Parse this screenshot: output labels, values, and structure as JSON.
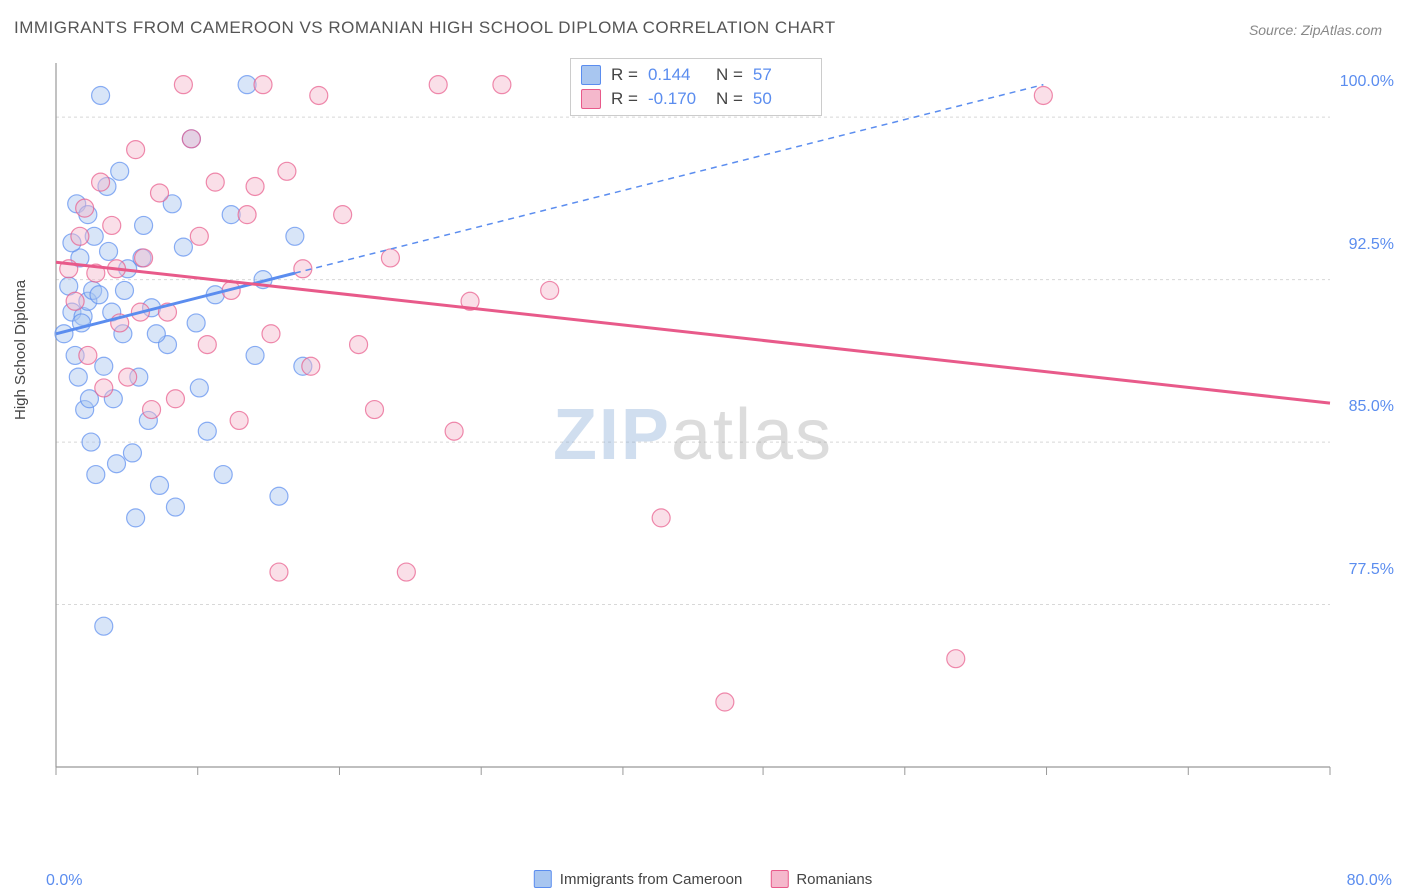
{
  "title": "IMMIGRANTS FROM CAMEROON VS ROMANIAN HIGH SCHOOL DIPLOMA CORRELATION CHART",
  "source": "Source: ZipAtlas.com",
  "y_axis_label": "High School Diploma",
  "watermark_zip": "ZIP",
  "watermark_atlas": "atlas",
  "chart": {
    "type": "scatter",
    "background_color": "#ffffff",
    "grid_color": "#d8d8d8",
    "axis_color": "#999999",
    "tick_color": "#999999",
    "label_color": "#5b8def",
    "xlim": [
      0,
      80
    ],
    "ylim": [
      70,
      102.5
    ],
    "x_ticks": [
      0,
      8.9,
      17.8,
      26.7,
      35.6,
      44.4,
      53.3,
      62.2,
      71.1,
      80
    ],
    "x_tick_labels": {
      "0": "0.0%",
      "80": "80.0%"
    },
    "y_gridlines": [
      77.5,
      85.0,
      92.5,
      100.0
    ],
    "y_tick_labels": [
      "77.5%",
      "85.0%",
      "92.5%",
      "100.0%"
    ],
    "marker_radius": 9,
    "marker_opacity": 0.45,
    "series": [
      {
        "name": "Immigrants from Cameroon",
        "color_fill": "#a8c6f0",
        "color_stroke": "#5b8def",
        "r_value": "0.144",
        "n_value": "57",
        "trend": {
          "x1": 0,
          "y1": 90.0,
          "x2": 15,
          "y2": 92.8,
          "extrap_x2": 62,
          "extrap_y2": 101.5,
          "width_solid": 3,
          "width_dash": 1.5
        },
        "points": [
          [
            0.5,
            90.0
          ],
          [
            0.8,
            92.2
          ],
          [
            1.0,
            91.0
          ],
          [
            1.2,
            89.0
          ],
          [
            1.3,
            96.0
          ],
          [
            1.5,
            93.5
          ],
          [
            1.7,
            90.8
          ],
          [
            1.8,
            86.5
          ],
          [
            2.0,
            91.5
          ],
          [
            2.0,
            95.5
          ],
          [
            2.2,
            85.0
          ],
          [
            2.3,
            92.0
          ],
          [
            2.5,
            83.5
          ],
          [
            2.8,
            101.0
          ],
          [
            3.0,
            88.5
          ],
          [
            3.0,
            76.5
          ],
          [
            3.2,
            96.8
          ],
          [
            3.5,
            91.0
          ],
          [
            3.8,
            84.0
          ],
          [
            4.0,
            97.5
          ],
          [
            4.2,
            90.0
          ],
          [
            4.5,
            93.0
          ],
          [
            5.0,
            81.5
          ],
          [
            5.2,
            88.0
          ],
          [
            5.5,
            95.0
          ],
          [
            5.8,
            86.0
          ],
          [
            6.0,
            91.2
          ],
          [
            6.5,
            83.0
          ],
          [
            7.0,
            89.5
          ],
          [
            7.5,
            82.0
          ],
          [
            8.0,
            94.0
          ],
          [
            8.5,
            99.0
          ],
          [
            9.0,
            87.5
          ],
          [
            9.5,
            85.5
          ],
          [
            10.0,
            91.8
          ],
          [
            10.5,
            83.5
          ],
          [
            11.0,
            95.5
          ],
          [
            12.0,
            101.5
          ],
          [
            12.5,
            89.0
          ],
          [
            13.0,
            92.5
          ],
          [
            14.0,
            82.5
          ],
          [
            15.0,
            94.5
          ],
          [
            15.5,
            88.5
          ],
          [
            1.0,
            94.2
          ],
          [
            1.4,
            88.0
          ],
          [
            1.6,
            90.5
          ],
          [
            2.1,
            87.0
          ],
          [
            2.4,
            94.5
          ],
          [
            2.7,
            91.8
          ],
          [
            3.3,
            93.8
          ],
          [
            3.6,
            87.0
          ],
          [
            4.3,
            92.0
          ],
          [
            4.8,
            84.5
          ],
          [
            5.4,
            93.5
          ],
          [
            6.3,
            90.0
          ],
          [
            7.3,
            96.0
          ],
          [
            8.8,
            90.5
          ]
        ]
      },
      {
        "name": "Romanians",
        "color_fill": "#f5b8cc",
        "color_stroke": "#e85a8a",
        "r_value": "-0.170",
        "n_value": "50",
        "trend": {
          "x1": 0,
          "y1": 93.3,
          "x2": 80,
          "y2": 86.8,
          "width_solid": 3
        },
        "points": [
          [
            0.8,
            93.0
          ],
          [
            1.2,
            91.5
          ],
          [
            1.5,
            94.5
          ],
          [
            2.0,
            89.0
          ],
          [
            2.5,
            92.8
          ],
          [
            3.0,
            87.5
          ],
          [
            3.5,
            95.0
          ],
          [
            4.0,
            90.5
          ],
          [
            4.5,
            88.0
          ],
          [
            5.0,
            98.5
          ],
          [
            5.5,
            93.5
          ],
          [
            6.0,
            86.5
          ],
          [
            6.5,
            96.5
          ],
          [
            7.0,
            91.0
          ],
          [
            8.0,
            101.5
          ],
          [
            8.5,
            99.0
          ],
          [
            9.0,
            94.5
          ],
          [
            9.5,
            89.5
          ],
          [
            10.0,
            97.0
          ],
          [
            11.0,
            92.0
          ],
          [
            11.5,
            86.0
          ],
          [
            12.0,
            95.5
          ],
          [
            13.0,
            101.5
          ],
          [
            13.5,
            90.0
          ],
          [
            14.0,
            79.0
          ],
          [
            14.5,
            97.5
          ],
          [
            15.5,
            93.0
          ],
          [
            16.0,
            88.5
          ],
          [
            16.5,
            101.0
          ],
          [
            18.0,
            95.5
          ],
          [
            19.0,
            89.5
          ],
          [
            20.0,
            86.5
          ],
          [
            21.0,
            93.5
          ],
          [
            22.0,
            79.0
          ],
          [
            24.0,
            101.5
          ],
          [
            25.0,
            85.5
          ],
          [
            26.0,
            91.5
          ],
          [
            28.0,
            101.5
          ],
          [
            31.0,
            92.0
          ],
          [
            34.0,
            101.5
          ],
          [
            38.0,
            81.5
          ],
          [
            42.0,
            73.0
          ],
          [
            56.5,
            75.0
          ],
          [
            62.0,
            101.0
          ],
          [
            1.8,
            95.8
          ],
          [
            2.8,
            97.0
          ],
          [
            3.8,
            93.0
          ],
          [
            5.3,
            91.0
          ],
          [
            7.5,
            87.0
          ],
          [
            12.5,
            96.8
          ]
        ]
      }
    ]
  },
  "legend": {
    "series1_label": "Immigrants from Cameroon",
    "series2_label": "Romanians"
  },
  "stats_labels": {
    "r": "R =",
    "n": "N ="
  }
}
